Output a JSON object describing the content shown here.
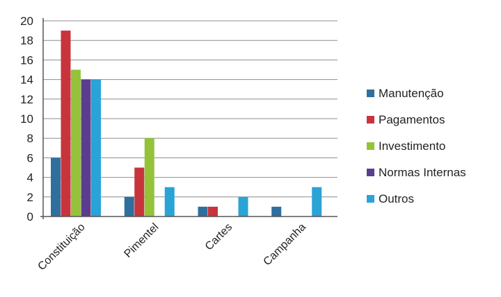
{
  "chart_data": {
    "type": "bar",
    "categories": [
      "Constituição",
      "Pimentel",
      "Cartes",
      "Campanha"
    ],
    "series": [
      {
        "name": "Manutenção",
        "values": [
          6,
          2,
          1,
          1
        ],
        "color": "#2e6f9e"
      },
      {
        "name": "Pagamentos",
        "values": [
          19,
          5,
          1,
          0
        ],
        "color": "#c8343c"
      },
      {
        "name": "Investimento",
        "values": [
          15,
          8,
          0,
          0
        ],
        "color": "#94c33a"
      },
      {
        "name": "Normas Internas",
        "values": [
          14,
          0,
          0,
          0
        ],
        "color": "#5a3d8f"
      },
      {
        "name": "Outros",
        "values": [
          14,
          3,
          2,
          3
        ],
        "color": "#2aa3d6"
      }
    ],
    "ylim": [
      0,
      20
    ],
    "yticks": [
      0,
      2,
      4,
      6,
      8,
      10,
      12,
      14,
      16,
      18,
      20
    ],
    "grid": true,
    "legend": "right",
    "title": "",
    "xlabel": "",
    "ylabel": ""
  }
}
